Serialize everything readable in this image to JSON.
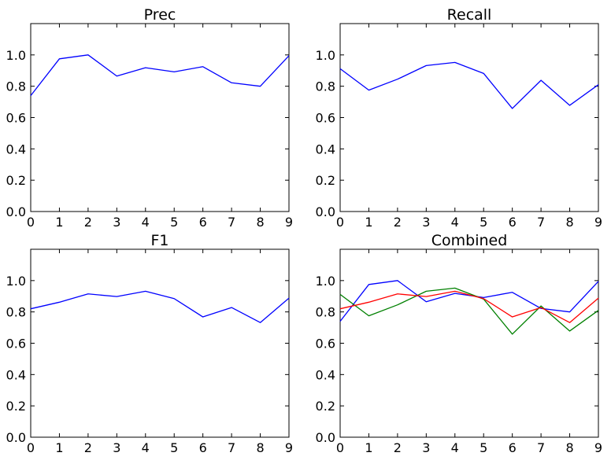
{
  "colors": {
    "prec": "#0000ff",
    "recall": "#008000",
    "f1": "#ff0000",
    "axes": "#000000",
    "background": "#ffffff"
  },
  "chart_data": [
    {
      "type": "line",
      "title": "Prec",
      "xlabel": "",
      "ylabel": "",
      "xlim": [
        0,
        9
      ],
      "ylim": [
        0,
        1.2
      ],
      "xticks": [
        "0",
        "1",
        "2",
        "3",
        "4",
        "5",
        "6",
        "7",
        "8",
        "9"
      ],
      "yticks": [
        "0.0",
        "0.2",
        "0.4",
        "0.6",
        "0.8",
        "1.0"
      ],
      "x": [
        0,
        1,
        2,
        3,
        4,
        5,
        6,
        7,
        8,
        9
      ],
      "series": [
        {
          "color": "#0000ff",
          "values": [
            0.74,
            0.975,
            1.0,
            0.865,
            0.918,
            0.892,
            0.925,
            0.822,
            0.8,
            0.995
          ]
        }
      ]
    },
    {
      "type": "line",
      "title": "Recall",
      "xlabel": "",
      "ylabel": "",
      "xlim": [
        0,
        9
      ],
      "ylim": [
        0,
        1.2
      ],
      "xticks": [
        "0",
        "1",
        "2",
        "3",
        "4",
        "5",
        "6",
        "7",
        "8",
        "9"
      ],
      "yticks": [
        "0.0",
        "0.2",
        "0.4",
        "0.6",
        "0.8",
        "1.0"
      ],
      "x": [
        0,
        1,
        2,
        3,
        4,
        5,
        6,
        7,
        8,
        9
      ],
      "series": [
        {
          "color": "#0000ff",
          "values": [
            0.912,
            0.775,
            0.845,
            0.932,
            0.952,
            0.882,
            0.658,
            0.838,
            0.678,
            0.81
          ]
        }
      ]
    },
    {
      "type": "line",
      "title": "F1",
      "xlabel": "",
      "ylabel": "",
      "xlim": [
        0,
        9
      ],
      "ylim": [
        0,
        1.2
      ],
      "xticks": [
        "0",
        "1",
        "2",
        "3",
        "4",
        "5",
        "6",
        "7",
        "8",
        "9"
      ],
      "yticks": [
        "0.0",
        "0.2",
        "0.4",
        "0.6",
        "0.8",
        "1.0"
      ],
      "x": [
        0,
        1,
        2,
        3,
        4,
        5,
        6,
        7,
        8,
        9
      ],
      "series": [
        {
          "color": "#0000ff",
          "values": [
            0.82,
            0.862,
            0.915,
            0.898,
            0.932,
            0.885,
            0.768,
            0.828,
            0.732,
            0.888
          ]
        }
      ]
    },
    {
      "type": "line",
      "title": "Combined",
      "xlabel": "",
      "ylabel": "",
      "xlim": [
        0,
        9
      ],
      "ylim": [
        0,
        1.2
      ],
      "xticks": [
        "0",
        "1",
        "2",
        "3",
        "4",
        "5",
        "6",
        "7",
        "8",
        "9"
      ],
      "yticks": [
        "0.0",
        "0.2",
        "0.4",
        "0.6",
        "0.8",
        "1.0"
      ],
      "x": [
        0,
        1,
        2,
        3,
        4,
        5,
        6,
        7,
        8,
        9
      ],
      "series": [
        {
          "color": "#0000ff",
          "values": [
            0.74,
            0.975,
            1.0,
            0.865,
            0.918,
            0.892,
            0.925,
            0.822,
            0.8,
            0.995
          ]
        },
        {
          "color": "#008000",
          "values": [
            0.912,
            0.775,
            0.845,
            0.932,
            0.952,
            0.882,
            0.658,
            0.838,
            0.678,
            0.81
          ]
        },
        {
          "color": "#ff0000",
          "values": [
            0.82,
            0.862,
            0.915,
            0.898,
            0.932,
            0.885,
            0.768,
            0.828,
            0.732,
            0.888
          ]
        }
      ]
    }
  ]
}
